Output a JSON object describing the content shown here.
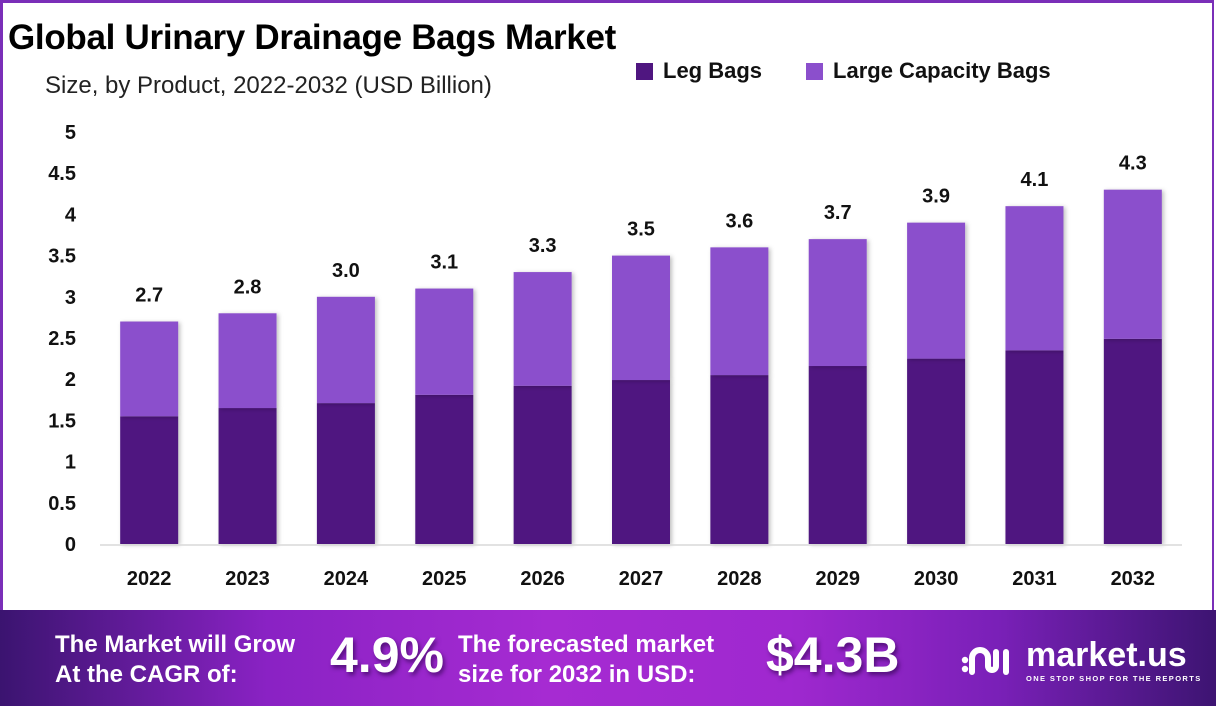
{
  "header": {
    "title": "Global Urinary Drainage Bags Market",
    "subtitle": "Size, by Product, 2022-2032 (USD Billion)"
  },
  "legend": [
    {
      "label": "Leg Bags",
      "color": "#4f1680"
    },
    {
      "label": "Large Capacity Bags",
      "color": "#8b4fcc"
    }
  ],
  "chart_data": {
    "type": "bar",
    "stacked": true,
    "title": "Global Urinary Drainage Bags Market",
    "subtitle": "Size, by Product, 2022-2032 (USD Billion)",
    "xlabel": "",
    "ylabel": "",
    "categories": [
      "2022",
      "2023",
      "2024",
      "2025",
      "2026",
      "2027",
      "2028",
      "2029",
      "2030",
      "2031",
      "2032"
    ],
    "series": [
      {
        "name": "Leg Bags",
        "color": "#4f1680",
        "values": [
          1.55,
          1.65,
          1.71,
          1.81,
          1.92,
          1.99,
          2.05,
          2.16,
          2.25,
          2.35,
          2.49
        ]
      },
      {
        "name": "Large Capacity Bags",
        "color": "#8b4fcc",
        "values": [
          1.15,
          1.15,
          1.29,
          1.29,
          1.38,
          1.51,
          1.55,
          1.54,
          1.65,
          1.75,
          1.81
        ]
      }
    ],
    "totals": [
      "2.7",
      "2.8",
      "3.0",
      "3.1",
      "3.3",
      "3.5",
      "3.6",
      "3.7",
      "3.9",
      "4.1",
      "4.3"
    ],
    "ylim": [
      0,
      5
    ],
    "yticks": [
      "0",
      "0.5",
      "1",
      "1.5",
      "2",
      "2.5",
      "3",
      "3.5",
      "4",
      "4.5",
      "5"
    ],
    "grid": false,
    "legend_position": "top-right"
  },
  "banner": {
    "cagr_text_line1": "The Market will Grow",
    "cagr_text_line2": "At the CAGR of:",
    "cagr_value": "4.9%",
    "forecast_text_line1": "The forecasted market",
    "forecast_text_line2": "size for 2032 in USD:",
    "forecast_value": "$4.3B",
    "brand_name": "market.us",
    "brand_tagline": "ONE STOP SHOP FOR THE REPORTS"
  }
}
